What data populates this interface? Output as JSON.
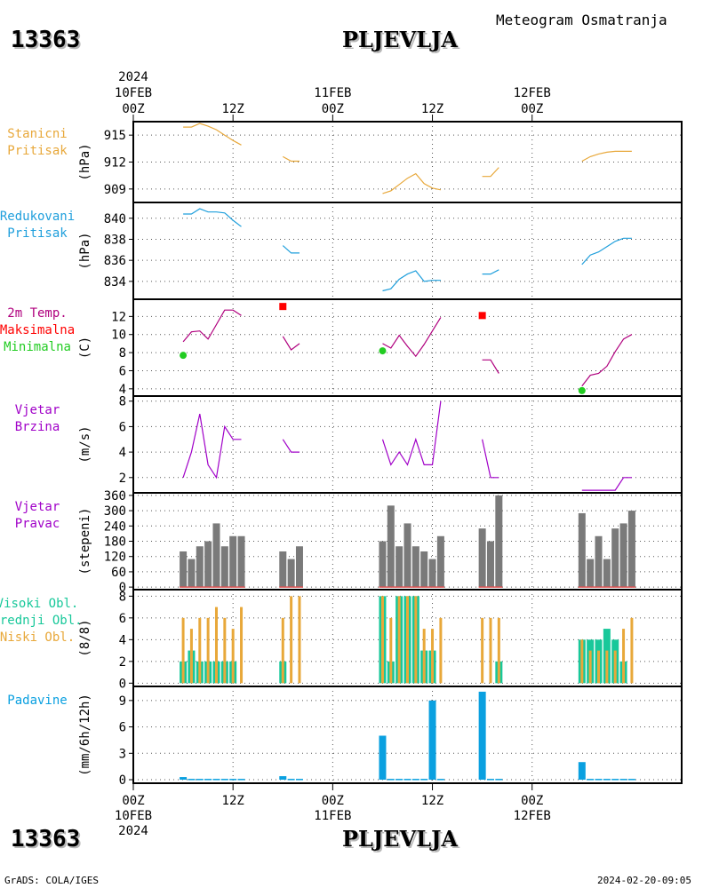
{
  "header": {
    "station_id": "13363",
    "station_name": "PLJEVLJA",
    "subtitle": "Meteogram Osmatranja"
  },
  "footer": {
    "station_id": "13363",
    "station_name": "PLJEVLJA",
    "credit": "GrADS: COLA/IGES",
    "timestamp": "2024-02-20-09:05"
  },
  "time_axis": {
    "year": "2024",
    "start_hour": 0,
    "end_hour": 66,
    "major_ticks": [
      {
        "hour": 0,
        "label": "00Z",
        "date": "10FEB",
        "year": "2024"
      },
      {
        "hour": 12,
        "label": "12Z"
      },
      {
        "hour": 24,
        "label": "00Z",
        "date": "11FEB"
      },
      {
        "hour": 36,
        "label": "12Z"
      },
      {
        "hour": 48,
        "label": "00Z",
        "date": "12FEB"
      }
    ]
  },
  "colors": {
    "pressure_station": "#e8a83a",
    "pressure_reduced": "#1f9fdc",
    "temp": "#b0007e",
    "temp_max": "#ff0000",
    "temp_min": "#22cc22",
    "wind": "#a000c8",
    "wind_dir_bar": "#7a7a7a",
    "wind_dir_base": "#e05050",
    "cloud_high": "#18c89a",
    "cloud_low": "#e8a83a",
    "precip": "#0aa0e0"
  },
  "chart_data": [
    {
      "type": "line",
      "id": "station-pressure",
      "label_lines": [
        "Stanicni",
        "Pritisak"
      ],
      "ylabel": "(hPa)",
      "ylim": [
        907.5,
        916.5
      ],
      "yticks": [
        909,
        912,
        915
      ],
      "series": [
        {
          "x": [
            6,
            7,
            8,
            9,
            10,
            11,
            12,
            13
          ],
          "values": [
            915.9,
            915.9,
            916.3,
            916.0,
            915.6,
            915.0,
            914.4,
            913.9
          ]
        },
        {
          "x": [
            18,
            19,
            20
          ],
          "values": [
            912.6,
            912.1,
            912.1
          ]
        },
        {
          "x": [
            30,
            31,
            32,
            33,
            34,
            35,
            36,
            37
          ],
          "values": [
            908.5,
            908.8,
            909.5,
            910.2,
            910.7,
            909.6,
            909.1,
            908.9
          ]
        },
        {
          "x": [
            42,
            43,
            44
          ],
          "values": [
            910.4,
            910.4,
            911.4
          ]
        },
        {
          "x": [
            54,
            55,
            56,
            57,
            58,
            59,
            60
          ],
          "values": [
            912.1,
            912.6,
            912.9,
            913.1,
            913.2,
            913.2,
            913.2
          ]
        }
      ]
    },
    {
      "type": "line",
      "id": "reduced-pressure",
      "label_lines": [
        "Redukovani",
        "Pritisak"
      ],
      "ylabel": "(hPa)",
      "ylim": [
        832.3,
        841.5
      ],
      "yticks": [
        834,
        836,
        838,
        840
      ],
      "series": [
        {
          "x": [
            6,
            7,
            8,
            9,
            10,
            11,
            12,
            13
          ],
          "values": [
            840.4,
            840.4,
            840.9,
            840.6,
            840.6,
            840.5,
            839.8,
            839.2
          ]
        },
        {
          "x": [
            18,
            19,
            20
          ],
          "values": [
            837.4,
            836.7,
            836.7
          ]
        },
        {
          "x": [
            30,
            31,
            32,
            33,
            34,
            35,
            36,
            37
          ],
          "values": [
            833.1,
            833.3,
            834.2,
            834.7,
            835.0,
            834.0,
            834.1,
            834.1
          ]
        },
        {
          "x": [
            42,
            43,
            44
          ],
          "values": [
            834.7,
            834.7,
            835.1
          ]
        },
        {
          "x": [
            54,
            55,
            56,
            57,
            58,
            59,
            60
          ],
          "values": [
            835.6,
            836.5,
            836.8,
            837.3,
            837.8,
            838.1,
            838.1
          ]
        }
      ]
    },
    {
      "type": "line",
      "id": "temperature",
      "label_lines": [
        "2m Temp.",
        "Maksimalna",
        "Minimalna"
      ],
      "ylabel": "(C)",
      "ylim": [
        3.2,
        13.9
      ],
      "yticks": [
        4,
        6,
        8,
        10,
        12
      ],
      "series": [
        {
          "x": [
            6,
            7,
            8,
            9,
            10,
            11,
            12,
            13
          ],
          "values": [
            9.2,
            10.3,
            10.4,
            9.5,
            11.1,
            12.7,
            12.7,
            12.1
          ]
        },
        {
          "x": [
            18,
            19,
            20
          ],
          "values": [
            9.8,
            8.3,
            9.0
          ]
        },
        {
          "x": [
            30,
            31,
            32,
            33,
            34,
            35,
            36,
            37
          ],
          "values": [
            9.0,
            8.5,
            9.9,
            8.7,
            7.6,
            8.9,
            10.4,
            11.9
          ]
        },
        {
          "x": [
            42,
            43,
            44
          ],
          "values": [
            7.2,
            7.2,
            5.7
          ]
        },
        {
          "x": [
            54,
            55,
            56,
            57,
            58,
            59,
            60
          ],
          "values": [
            4.3,
            5.5,
            5.7,
            6.5,
            8.1,
            9.5,
            10.0
          ]
        }
      ],
      "max_points": [
        {
          "x": 18,
          "value": 13.1
        },
        {
          "x": 42,
          "value": 12.1
        }
      ],
      "min_points": [
        {
          "x": 6,
          "value": 7.7
        },
        {
          "x": 30,
          "value": 8.2
        },
        {
          "x": 54,
          "value": 3.8
        }
      ]
    },
    {
      "type": "line",
      "id": "wind-speed",
      "label_lines": [
        "Vjetar",
        "Brzina"
      ],
      "ylabel": "(m/s)",
      "ylim": [
        0.8,
        8.4
      ],
      "yticks": [
        2,
        4,
        6,
        8
      ],
      "series": [
        {
          "x": [
            6,
            7,
            8,
            9,
            10,
            11,
            12,
            13
          ],
          "values": [
            2,
            4,
            7,
            3,
            2,
            6,
            5,
            5
          ]
        },
        {
          "x": [
            18,
            19,
            20
          ],
          "values": [
            5,
            4,
            4
          ]
        },
        {
          "x": [
            30,
            31,
            32,
            33,
            34,
            35,
            36,
            37
          ],
          "values": [
            5,
            3,
            4,
            3,
            5,
            3,
            3,
            8
          ]
        },
        {
          "x": [
            42,
            43,
            44
          ],
          "values": [
            5,
            2,
            2
          ]
        },
        {
          "x": [
            54,
            55,
            56,
            57,
            58,
            59,
            60
          ],
          "values": [
            1,
            1,
            1,
            1,
            1,
            2,
            2
          ]
        }
      ]
    },
    {
      "type": "bar",
      "id": "wind-direction",
      "label_lines": [
        "Vjetar",
        "Pravac"
      ],
      "ylabel": "(stepeni)",
      "ylim": [
        -10,
        370
      ],
      "yticks": [
        0,
        60,
        120,
        180,
        240,
        300,
        360
      ],
      "x": [
        6,
        7,
        8,
        9,
        10,
        11,
        12,
        13,
        18,
        19,
        20,
        30,
        31,
        32,
        33,
        34,
        35,
        36,
        37,
        42,
        43,
        44,
        54,
        55,
        56,
        57,
        58,
        59,
        60
      ],
      "values": [
        140,
        110,
        160,
        180,
        250,
        160,
        200,
        200,
        140,
        110,
        160,
        180,
        320,
        160,
        250,
        160,
        140,
        110,
        200,
        230,
        180,
        360,
        290,
        110,
        200,
        110,
        230,
        250,
        300
      ]
    },
    {
      "type": "bar",
      "id": "cloud-cover",
      "label_lines": [
        "Visoki Obl.",
        "Srednji Obl.",
        "Niski Obl."
      ],
      "ylabel": "(8/8)",
      "ylim": [
        -0.3,
        8.6
      ],
      "yticks": [
        0,
        2,
        4,
        6,
        8
      ],
      "x": [
        6,
        7,
        8,
        9,
        10,
        11,
        12,
        13,
        18,
        19,
        20,
        30,
        31,
        32,
        33,
        34,
        35,
        36,
        37,
        42,
        43,
        44,
        54,
        55,
        56,
        57,
        58,
        59,
        60
      ],
      "series": [
        {
          "name": "Visoki Obl.",
          "values": [
            2,
            3,
            2,
            2,
            2,
            2,
            2,
            0,
            2,
            0,
            0,
            8,
            2,
            8,
            8,
            8,
            3,
            3,
            0,
            0,
            0,
            2,
            4,
            4,
            4,
            5,
            4,
            2,
            0
          ]
        },
        {
          "name": "Niski Obl.",
          "values": [
            6,
            5,
            6,
            6,
            7,
            6,
            5,
            7,
            6,
            8,
            8,
            8,
            6,
            8,
            8,
            8,
            5,
            5,
            6,
            6,
            6,
            6,
            4,
            3,
            3,
            3,
            3,
            5,
            6
          ]
        }
      ]
    },
    {
      "type": "bar",
      "id": "precipitation",
      "label_lines": [
        "Padavine"
      ],
      "ylabel": "(mm/6h/12h)",
      "ylim": [
        -0.4,
        10.6
      ],
      "yticks": [
        0,
        3,
        6,
        9
      ],
      "x": [
        6,
        7,
        8,
        9,
        10,
        11,
        12,
        13,
        18,
        19,
        20,
        30,
        31,
        32,
        33,
        34,
        35,
        36,
        37,
        42,
        43,
        44,
        54,
        55,
        56,
        57,
        58,
        59,
        60
      ],
      "values": [
        0.3,
        0.1,
        0.1,
        0.1,
        0.1,
        0.1,
        0.1,
        0.1,
        0.4,
        0.1,
        0.1,
        5.0,
        0.1,
        0.1,
        0.1,
        0.1,
        0.1,
        9.0,
        0.1,
        10.0,
        0.1,
        0.1,
        2.0,
        0.1,
        0.1,
        0.1,
        0.1,
        0.1,
        0.1
      ]
    }
  ]
}
